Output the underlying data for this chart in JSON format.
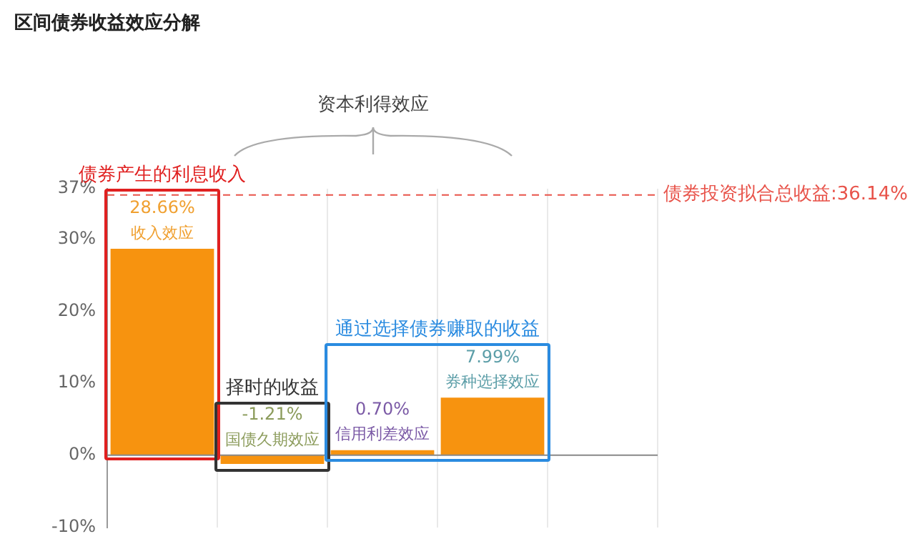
{
  "chart_data": {
    "type": "bar",
    "title": "区间债券收益效应分解",
    "categories": [
      "收入效应",
      "国债久期效应",
      "信用利差效应",
      "券种选择效应",
      null
    ],
    "values": [
      28.66,
      -1.21,
      0.7,
      7.99,
      null
    ],
    "value_labels": [
      "28.66%",
      "-1.21%",
      "0.70%",
      "7.99%",
      null
    ],
    "color": "#f7930f",
    "ylim": [
      -10,
      37
    ],
    "yticks": [
      {
        "value": -10,
        "label": "-10%"
      },
      {
        "value": 0,
        "label": "0%"
      },
      {
        "value": 10,
        "label": "10%"
      },
      {
        "value": 20,
        "label": "20%"
      },
      {
        "value": 30,
        "label": "30%"
      },
      {
        "value": 37,
        "label": "37%"
      }
    ],
    "grid": "x",
    "tick_labels": "y",
    "ref_lines": [
      {
        "axis": "y",
        "value": 36.14,
        "label": "债券投资拟合总收益:36.14%",
        "color": "#e8534a",
        "line_style": "dashed"
      }
    ],
    "annotations": [
      "资本利得效应",
      "债券产生的利息收入",
      "择时的收益",
      "通过选择债券赚取的收益"
    ]
  }
}
